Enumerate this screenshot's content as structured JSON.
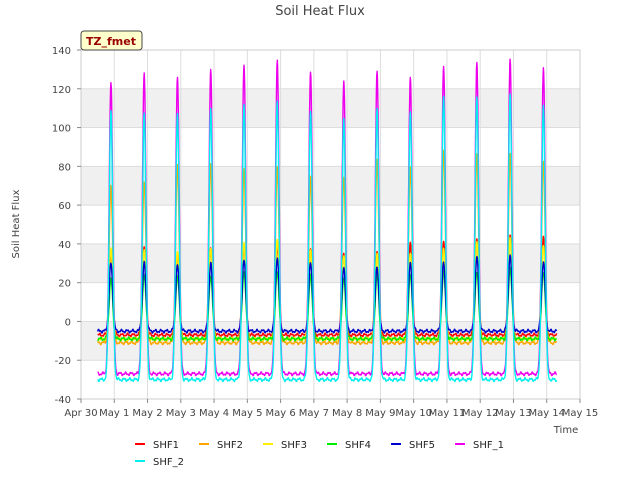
{
  "chart_data": {
    "type": "line",
    "title": "Soil Heat Flux",
    "xlabel": "Time",
    "ylabel": "Soil Heat Flux",
    "badge": "TZ_fmet",
    "xlim": [
      0,
      15
    ],
    "ylim": [
      -40,
      140
    ],
    "yticks": [
      -40,
      -20,
      0,
      20,
      40,
      60,
      80,
      100,
      120,
      140
    ],
    "xticks": [
      {
        "v": 0,
        "label": "Apr 30"
      },
      {
        "v": 1,
        "label": "May 1"
      },
      {
        "v": 2,
        "label": "May 2"
      },
      {
        "v": 3,
        "label": "May 3"
      },
      {
        "v": 4,
        "label": "May 4"
      },
      {
        "v": 5,
        "label": "May 5"
      },
      {
        "v": 6,
        "label": "May 6"
      },
      {
        "v": 7,
        "label": "May 7"
      },
      {
        "v": 8,
        "label": "May 8"
      },
      {
        "v": 9,
        "label": "May 9"
      },
      {
        "v": 10,
        "label": "May 10"
      },
      {
        "v": 11,
        "label": "May 11"
      },
      {
        "v": 12,
        "label": "May 12"
      },
      {
        "v": 13,
        "label": "May 13"
      },
      {
        "v": 14,
        "label": "May 14"
      },
      {
        "v": 15,
        "label": "May 15"
      }
    ],
    "data_range_days": [
      0.5,
      14.3
    ],
    "peak_day_offset": 0.9,
    "grid": true,
    "legend_position": "bottom",
    "series": [
      {
        "name": "SHF1",
        "color": "#ff0000",
        "night": -7,
        "peaks": [
          35,
          38,
          35,
          38,
          40,
          40,
          38,
          35,
          36,
          40,
          41,
          42,
          45,
          44
        ]
      },
      {
        "name": "SHF2",
        "color": "#ffa500",
        "night": -11,
        "peaks": [
          70,
          72,
          80,
          81,
          78,
          80,
          75,
          75,
          84,
          80,
          88,
          86,
          86,
          82
        ]
      },
      {
        "name": "SHF3",
        "color": "#ffee00",
        "night": -9,
        "peaks": [
          38,
          38,
          36,
          38,
          40,
          42,
          36,
          34,
          35,
          36,
          38,
          42,
          43,
          39
        ]
      },
      {
        "name": "SHF4",
        "color": "#00ee00",
        "night": -9,
        "peaks": [
          22,
          24,
          24,
          24,
          26,
          26,
          24,
          22,
          24,
          24,
          26,
          26,
          28,
          26
        ]
      },
      {
        "name": "SHF5",
        "color": "#0000cc",
        "night": -5,
        "peaks": [
          30,
          30,
          29,
          30,
          32,
          33,
          31,
          28,
          28,
          30,
          30,
          33,
          34,
          31
        ]
      },
      {
        "name": "SHF_1",
        "color": "#ee00ee",
        "night": -27,
        "peaks": [
          124,
          128,
          126,
          129,
          132,
          134,
          129,
          124,
          130,
          126,
          132,
          133,
          135,
          130
        ]
      },
      {
        "name": "SHF_2",
        "color": "#00eeee",
        "night": -30,
        "peaks": [
          109,
          108,
          108,
          110,
          112,
          113,
          108,
          104,
          110,
          108,
          117,
          116,
          118,
          111
        ]
      }
    ]
  }
}
